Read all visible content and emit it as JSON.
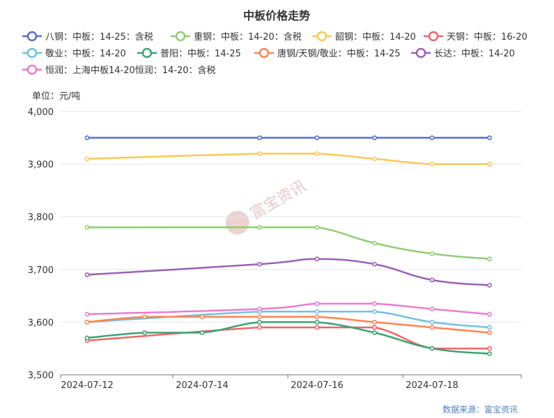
{
  "chart_data": {
    "type": "line",
    "title": "中板价格走势",
    "ylabel": "单位：元/吨",
    "source": "数据来源：富宝资讯",
    "watermark": "富宝资讯",
    "x": [
      "2024-07-12",
      "2024-07-13",
      "2024-07-14",
      "2024-07-15",
      "2024-07-16",
      "2024-07-17",
      "2024-07-18",
      "2024-07-19"
    ],
    "xticks": [
      "2024-07-12",
      "2024-07-14",
      "2024-07-16",
      "2024-07-18"
    ],
    "ylim": [
      3500,
      4000
    ],
    "yticks": [
      3500,
      3600,
      3700,
      3800,
      3900,
      4000
    ],
    "ytick_labels": [
      "3,500",
      "3,600",
      "3,700",
      "3,800",
      "3,900",
      "4,000"
    ],
    "grid": true,
    "legend_position": "top",
    "series": [
      {
        "name": "八钢：中板：14-25：含税",
        "color": "#5470c6",
        "points": [
          [
            "2024-07-12",
            3950
          ],
          [
            "2024-07-15",
            3950
          ],
          [
            "2024-07-16",
            3950
          ],
          [
            "2024-07-17",
            3950
          ],
          [
            "2024-07-18",
            3950
          ],
          [
            "2024-07-19",
            3950
          ]
        ]
      },
      {
        "name": "重钢：中板：14-20：含税",
        "color": "#91cc75",
        "points": [
          [
            "2024-07-12",
            3780
          ],
          [
            "2024-07-15",
            3780
          ],
          [
            "2024-07-16",
            3780
          ],
          [
            "2024-07-17",
            3750
          ],
          [
            "2024-07-18",
            3730
          ],
          [
            "2024-07-19",
            3720
          ]
        ]
      },
      {
        "name": "韶钢：中板：14-20",
        "color": "#fac858",
        "points": [
          [
            "2024-07-12",
            3910
          ],
          [
            "2024-07-15",
            3920
          ],
          [
            "2024-07-16",
            3920
          ],
          [
            "2024-07-17",
            3910
          ],
          [
            "2024-07-18",
            3900
          ],
          [
            "2024-07-19",
            3900
          ]
        ]
      },
      {
        "name": "天钢：中板：16-20",
        "color": "#ee6666",
        "points": [
          [
            "2024-07-12",
            3565
          ],
          [
            "2024-07-15",
            3590
          ],
          [
            "2024-07-16",
            3590
          ],
          [
            "2024-07-17",
            3590
          ],
          [
            "2024-07-18",
            3550
          ],
          [
            "2024-07-19",
            3550
          ]
        ]
      },
      {
        "name": "敬业：中板：14-20",
        "color": "#73c0de",
        "points": [
          [
            "2024-07-12",
            3600
          ],
          [
            "2024-07-15",
            3620
          ],
          [
            "2024-07-16",
            3620
          ],
          [
            "2024-07-17",
            3620
          ],
          [
            "2024-07-18",
            3600
          ],
          [
            "2024-07-19",
            3590
          ]
        ]
      },
      {
        "name": "普阳：中板：14-25",
        "color": "#3ba272",
        "points": [
          [
            "2024-07-12",
            3570
          ],
          [
            "2024-07-13",
            3580
          ],
          [
            "2024-07-14",
            3580
          ],
          [
            "2024-07-15",
            3600
          ],
          [
            "2024-07-16",
            3600
          ],
          [
            "2024-07-17",
            3580
          ],
          [
            "2024-07-18",
            3550
          ],
          [
            "2024-07-19",
            3540
          ]
        ]
      },
      {
        "name": "唐钢/天钢/敬业：中板：14-25",
        "color": "#fc8452",
        "points": [
          [
            "2024-07-12",
            3600
          ],
          [
            "2024-07-13",
            3610
          ],
          [
            "2024-07-14",
            3610
          ],
          [
            "2024-07-15",
            3610
          ],
          [
            "2024-07-16",
            3610
          ],
          [
            "2024-07-17",
            3600
          ],
          [
            "2024-07-18",
            3590
          ],
          [
            "2024-07-19",
            3580
          ]
        ]
      },
      {
        "name": "长达：中板：14-20",
        "color": "#9a60b4",
        "points": [
          [
            "2024-07-12",
            3690
          ],
          [
            "2024-07-15",
            3710
          ],
          [
            "2024-07-16",
            3720
          ],
          [
            "2024-07-17",
            3710
          ],
          [
            "2024-07-18",
            3680
          ],
          [
            "2024-07-19",
            3670
          ]
        ]
      },
      {
        "name": "恒润：上海中板14-20恒润：14-20：含税",
        "color": "#ea7ccc",
        "points": [
          [
            "2024-07-12",
            3615
          ],
          [
            "2024-07-15",
            3625
          ],
          [
            "2024-07-16",
            3635
          ],
          [
            "2024-07-17",
            3635
          ],
          [
            "2024-07-18",
            3625
          ],
          [
            "2024-07-19",
            3615
          ]
        ]
      }
    ]
  }
}
